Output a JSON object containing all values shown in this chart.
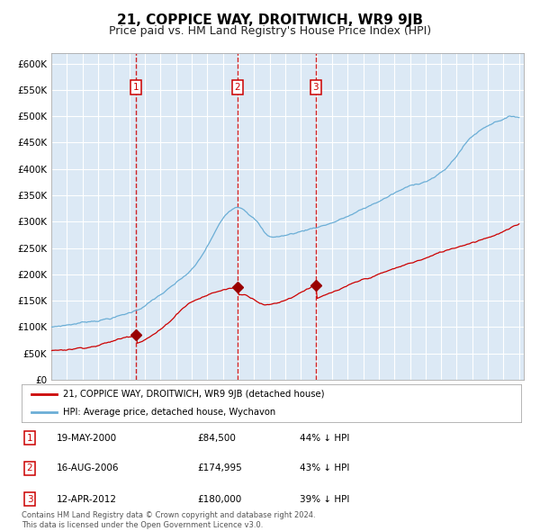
{
  "title": "21, COPPICE WAY, DROITWICH, WR9 9JB",
  "subtitle": "Price paid vs. HM Land Registry's House Price Index (HPI)",
  "title_fontsize": 11,
  "subtitle_fontsize": 9,
  "plot_bg_color": "#dce9f5",
  "grid_color": "#ffffff",
  "ylim": [
    0,
    620000
  ],
  "yticks": [
    0,
    50000,
    100000,
    150000,
    200000,
    250000,
    300000,
    350000,
    400000,
    450000,
    500000,
    550000,
    600000
  ],
  "ytick_labels": [
    "£0",
    "£50K",
    "£100K",
    "£150K",
    "£200K",
    "£250K",
    "£300K",
    "£350K",
    "£400K",
    "£450K",
    "£500K",
    "£550K",
    "£600K"
  ],
  "hpi_color": "#6baed6",
  "price_color": "#cc0000",
  "marker_color": "#990000",
  "vline_color": "#cc0000",
  "sale_indices": [
    65,
    143,
    203
  ],
  "sale_prices": [
    84500,
    174995,
    180000
  ],
  "sale_labels": [
    "1",
    "2",
    "3"
  ],
  "legend_items": [
    {
      "label": "21, COPPICE WAY, DROITWICH, WR9 9JB (detached house)",
      "color": "#cc0000"
    },
    {
      "label": "HPI: Average price, detached house, Wychavon",
      "color": "#6baed6"
    }
  ],
  "table_rows": [
    {
      "num": "1",
      "date": "19-MAY-2000",
      "price": "£84,500",
      "pct": "44% ↓ HPI"
    },
    {
      "num": "2",
      "date": "16-AUG-2006",
      "price": "£174,995",
      "pct": "43% ↓ HPI"
    },
    {
      "num": "3",
      "date": "12-APR-2012",
      "price": "£180,000",
      "pct": "39% ↓ HPI"
    }
  ],
  "footer": "Contains HM Land Registry data © Crown copyright and database right 2024.\nThis data is licensed under the Open Government Licence v3.0.",
  "n_months": 360,
  "xstart": 1995,
  "xend": 2025
}
